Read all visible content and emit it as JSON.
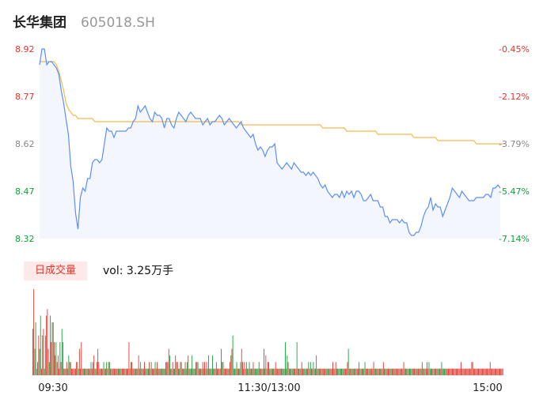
{
  "header": {
    "name": "长华集团",
    "code": "605018.SH"
  },
  "volume_panel": {
    "badge": "日成交量",
    "vol_label": "vol: 3.25万手"
  },
  "colors": {
    "price_line": "#5b8ff9",
    "avg_line": "#f5b94a",
    "up": "#e6342b",
    "down": "#13a038",
    "neutral": "#888888",
    "area_fill": "#f3f6fc"
  },
  "chart_data": [
    {
      "type": "line",
      "title": "",
      "x_ticks": [
        "09:30",
        "11:30/13:00",
        "15:00"
      ],
      "y_left_ticks": [
        "8.92",
        "8.77",
        "8.62",
        "8.47",
        "8.32"
      ],
      "y_right_ticks": [
        "-0.45%",
        "-2.12%",
        "-3.79%",
        "-5.47%",
        "-7.14%"
      ],
      "ylim": [
        8.32,
        8.92
      ],
      "series": [
        {
          "values": [
            8.87,
            8.92,
            8.92,
            8.87,
            8.88,
            8.88,
            8.87,
            8.86,
            8.84,
            8.79,
            8.75,
            8.7,
            8.65,
            8.55,
            8.5,
            8.4,
            8.35,
            8.45,
            8.48,
            8.47,
            8.51,
            8.51,
            8.56,
            8.57,
            8.57,
            8.56,
            8.57,
            8.62,
            8.67,
            8.66,
            8.66,
            8.64,
            8.66,
            8.66,
            8.66,
            8.66,
            8.66,
            8.67,
            8.67,
            8.69,
            8.7,
            8.74,
            8.72,
            8.73,
            8.74,
            8.72,
            8.7,
            8.69,
            8.72,
            8.71,
            8.71,
            8.7,
            8.67,
            8.7,
            8.7,
            8.68,
            8.67,
            8.7,
            8.72,
            8.71,
            8.7,
            8.69,
            8.71,
            8.72,
            8.71,
            8.7,
            8.7,
            8.7,
            8.68,
            8.69,
            8.7,
            8.68,
            8.69,
            8.69,
            8.7,
            8.71,
            8.7,
            8.68,
            8.69,
            8.7,
            8.69,
            8.68,
            8.67,
            8.68,
            8.69,
            8.67,
            8.66,
            8.65,
            8.64,
            8.65,
            8.62,
            8.6,
            8.61,
            8.6,
            8.58,
            8.6,
            8.61,
            8.61,
            8.62,
            8.56,
            8.55,
            8.54,
            8.55,
            8.56,
            8.55,
            8.54,
            8.56,
            8.55,
            8.54,
            8.53,
            8.53,
            8.52,
            8.53,
            8.52,
            8.53,
            8.52,
            8.51,
            8.49,
            8.48,
            8.49,
            8.47,
            8.46,
            8.45,
            8.46,
            8.46,
            8.45,
            8.47,
            8.45,
            8.47,
            8.46,
            8.47,
            8.45,
            8.47,
            8.47,
            8.46,
            8.44,
            8.44,
            8.45,
            8.46,
            8.44,
            8.44,
            8.44,
            8.42,
            8.42,
            8.39,
            8.39,
            8.37,
            8.38,
            8.38,
            8.38,
            8.37,
            8.38,
            8.37,
            8.37,
            8.34,
            8.33,
            8.33,
            8.34,
            8.34,
            8.36,
            8.39,
            8.41,
            8.42,
            8.45,
            8.41,
            8.43,
            8.42,
            8.42,
            8.39,
            8.41,
            8.43,
            8.45,
            8.48,
            8.47,
            8.46,
            8.45,
            8.47,
            8.46,
            8.45,
            8.44,
            8.44,
            8.44,
            8.45,
            8.45,
            8.45,
            8.45,
            8.46,
            8.46,
            8.45,
            8.48,
            8.48,
            8.49,
            8.48
          ]
        },
        {
          "values": [
            8.88,
            8.88,
            8.88,
            8.88,
            8.88,
            8.88,
            8.88,
            8.87,
            8.85,
            8.82,
            8.79,
            8.75,
            8.73,
            8.72,
            8.71,
            8.71,
            8.7,
            8.7,
            8.7,
            8.7,
            8.7,
            8.7,
            8.7,
            8.69,
            8.69,
            8.69,
            8.69,
            8.69,
            8.69,
            8.69,
            8.69,
            8.69,
            8.69,
            8.69,
            8.69,
            8.69,
            8.69,
            8.69,
            8.69,
            8.69,
            8.69,
            8.69,
            8.69,
            8.69,
            8.69,
            8.69,
            8.69,
            8.69,
            8.69,
            8.69,
            8.69,
            8.69,
            8.69,
            8.69,
            8.69,
            8.69,
            8.69,
            8.69,
            8.69,
            8.69,
            8.69,
            8.69,
            8.69,
            8.69,
            8.69,
            8.69,
            8.69,
            8.69,
            8.69,
            8.69,
            8.69,
            8.69,
            8.69,
            8.69,
            8.69,
            8.69,
            8.69,
            8.69,
            8.69,
            8.69,
            8.69,
            8.69,
            8.69,
            8.69,
            8.68,
            8.68,
            8.68,
            8.68,
            8.68,
            8.68,
            8.68,
            8.68,
            8.68,
            8.68,
            8.68,
            8.68,
            8.68,
            8.68,
            8.68,
            8.68,
            8.68,
            8.68,
            8.68,
            8.68,
            8.68,
            8.68,
            8.68,
            8.68,
            8.68,
            8.68,
            8.68,
            8.68,
            8.68,
            8.68,
            8.68,
            8.68,
            8.68,
            8.68,
            8.67,
            8.67,
            8.67,
            8.67,
            8.67,
            8.67,
            8.67,
            8.67,
            8.67,
            8.67,
            8.66,
            8.66,
            8.66,
            8.66,
            8.66,
            8.66,
            8.66,
            8.66,
            8.66,
            8.66,
            8.66,
            8.66,
            8.66,
            8.65,
            8.65,
            8.65,
            8.65,
            8.65,
            8.65,
            8.65,
            8.65,
            8.65,
            8.65,
            8.65,
            8.65,
            8.65,
            8.65,
            8.65,
            8.64,
            8.64,
            8.64,
            8.64,
            8.64,
            8.64,
            8.64,
            8.64,
            8.64,
            8.64,
            8.63,
            8.63,
            8.63,
            8.63,
            8.63,
            8.63,
            8.63,
            8.63,
            8.63,
            8.63,
            8.63,
            8.63,
            8.63,
            8.63,
            8.63,
            8.63,
            8.62,
            8.62,
            8.62,
            8.62,
            8.62,
            8.62,
            8.62,
            8.62,
            8.62,
            8.62,
            8.62,
            8.62,
            8.62
          ]
        }
      ]
    },
    {
      "type": "bar",
      "title": "",
      "values": [
        35,
        65,
        20,
        40,
        5,
        10,
        30,
        20,
        45,
        5,
        30,
        35,
        5,
        30,
        45,
        50,
        20,
        10,
        45,
        25,
        40,
        40,
        25,
        15,
        25,
        10,
        15,
        5,
        25,
        10,
        35,
        25,
        5,
        5,
        5,
        10,
        5,
        15,
        10,
        10,
        5,
        5,
        5,
        5,
        5,
        10,
        10,
        5,
        20,
        5,
        25,
        5,
        5,
        5,
        5,
        5,
        5,
        5,
        5,
        5,
        10,
        5,
        10,
        15,
        5,
        5,
        10,
        20,
        10,
        5,
        5,
        5,
        5,
        10,
        5,
        5,
        10,
        5,
        10,
        10,
        5,
        5,
        5,
        5,
        5,
        5,
        5,
        5,
        5,
        5,
        5,
        5,
        5,
        5,
        5,
        5,
        5,
        5,
        5,
        25,
        5,
        10,
        10,
        5,
        5,
        5,
        5,
        5,
        5,
        15,
        5,
        10,
        5,
        5,
        5,
        10,
        5,
        5,
        5,
        5,
        10,
        5,
        10,
        5,
        5,
        5,
        10,
        5,
        10,
        5,
        5,
        5,
        5,
        5,
        5,
        5,
        5,
        10,
        10,
        10,
        20,
        15,
        5,
        5,
        10,
        5,
        5,
        15,
        10,
        10,
        5,
        5,
        10,
        10,
        5,
        5,
        5,
        10,
        5,
        10,
        15,
        5,
        5,
        5,
        15,
        5,
        5,
        5,
        10,
        10,
        10,
        5,
        5,
        5,
        5,
        10,
        5,
        10,
        5,
        10,
        5,
        15,
        5,
        5,
        5,
        15,
        5,
        5,
        5,
        10,
        5,
        5,
        5,
        5,
        20,
        10,
        10,
        5,
        5,
        5,
        5,
        5,
        5,
        10,
        15,
        20,
        30,
        5,
        5,
        5,
        10,
        5,
        5,
        5,
        10,
        20,
        10,
        5,
        10,
        5,
        10,
        5,
        5,
        10,
        5,
        5,
        5,
        10,
        5,
        5,
        5,
        5,
        5,
        10,
        5,
        5,
        5,
        5,
        20,
        5,
        15,
        5,
        10,
        10,
        5,
        5,
        5,
        5,
        5,
        5,
        10,
        5,
        5,
        5,
        5,
        5,
        5,
        5,
        5,
        5,
        25,
        5,
        15,
        10,
        5,
        5,
        5,
        5,
        5,
        5,
        5,
        5,
        25,
        5,
        5,
        5,
        5,
        10,
        5,
        5,
        5,
        5,
        5,
        5,
        10,
        5,
        10,
        5,
        5,
        10,
        5,
        5,
        15,
        5,
        5,
        5,
        5,
        5,
        5,
        5,
        5,
        5,
        5,
        5,
        5,
        5,
        5,
        5,
        5,
        10,
        5,
        5,
        10,
        5,
        5,
        5,
        5,
        5,
        5,
        5,
        5,
        5,
        5,
        5,
        10,
        20,
        5,
        5,
        5,
        5,
        5,
        5,
        5,
        5,
        5,
        5,
        10,
        5,
        5,
        5,
        5,
        5,
        10,
        5,
        5,
        5,
        5,
        5,
        5,
        5,
        5,
        10,
        5,
        5,
        5,
        5,
        5,
        5,
        5,
        5,
        5,
        10,
        5,
        5,
        5,
        5,
        5,
        5,
        5,
        5,
        5,
        5,
        5,
        5,
        5,
        5,
        5,
        5,
        5,
        5,
        5,
        5,
        10,
        5,
        5,
        5,
        5,
        5,
        5,
        5,
        5,
        5,
        5,
        5,
        5,
        5,
        5,
        5,
        5,
        5,
        5,
        10,
        5,
        5,
        5,
        5,
        10,
        5,
        10,
        5,
        5,
        5,
        5,
        5,
        5,
        5,
        5,
        5,
        5,
        5,
        5,
        10,
        5,
        5,
        5,
        5,
        5,
        5,
        5,
        5,
        5,
        5,
        5,
        5,
        5,
        5,
        5,
        5,
        5,
        5,
        5,
        10,
        5,
        5,
        5,
        5,
        5,
        5,
        5,
        5,
        5,
        5,
        10,
        10,
        5,
        5,
        5,
        5,
        5,
        5,
        5,
        5,
        5,
        5,
        5,
        5,
        5,
        5,
        5,
        5,
        5,
        10,
        5,
        5,
        5,
        5,
        5,
        5,
        5,
        5,
        5,
        5,
        5,
        5,
        5
      ],
      "value_directions": [
        "up",
        "up",
        "down",
        "down",
        "neutral",
        "up",
        "up",
        "down",
        "down",
        "up",
        "down",
        "up",
        "down",
        "down",
        "up",
        "up",
        "up",
        "down",
        "down",
        "up",
        "down",
        "up",
        "up",
        "up",
        "down",
        "up",
        "up",
        "up",
        "down",
        "up",
        "down",
        "down",
        "up",
        "down",
        "up",
        "up",
        "down",
        "down",
        "up",
        "down",
        "up",
        "up",
        "up",
        "up",
        "down",
        "up",
        "down",
        "down",
        "up",
        "up",
        "up",
        "up",
        "up",
        "down",
        "up",
        "up",
        "down",
        "up",
        "up",
        "up",
        "down",
        "up",
        "up",
        "up",
        "down",
        "down",
        "up",
        "down",
        "up",
        "up",
        "down",
        "up",
        "up",
        "down",
        "up",
        "down",
        "down",
        "up",
        "up",
        "down",
        "up",
        "up",
        "up",
        "down",
        "up",
        "down",
        "up",
        "up",
        "down",
        "down",
        "down",
        "up",
        "up",
        "down",
        "up",
        "down",
        "up",
        "up",
        "up",
        "up",
        "up",
        "down",
        "up",
        "up",
        "up",
        "down",
        "down",
        "up",
        "down",
        "up",
        "up",
        "down",
        "down",
        "up",
        "up",
        "up",
        "up",
        "down",
        "down",
        "up",
        "up",
        "down",
        "down",
        "up",
        "up",
        "up",
        "down",
        "up",
        "up",
        "up",
        "down",
        "up",
        "up",
        "down",
        "down",
        "up",
        "down",
        "up",
        "up",
        "up",
        "up",
        "down",
        "down",
        "up",
        "up",
        "down",
        "down",
        "up",
        "up",
        "up",
        "down",
        "down",
        "up",
        "down",
        "up",
        "up",
        "down",
        "up",
        "down",
        "down",
        "up",
        "up",
        "down",
        "up",
        "down",
        "down",
        "up",
        "down",
        "up",
        "up",
        "down",
        "up",
        "up",
        "up",
        "down",
        "up",
        "up",
        "up",
        "down",
        "up",
        "down",
        "down",
        "up",
        "down",
        "down",
        "down",
        "up",
        "up",
        "down",
        "up",
        "up",
        "down",
        "up",
        "up",
        "down",
        "down",
        "up",
        "up",
        "up",
        "down",
        "up",
        "down",
        "up",
        "up",
        "down",
        "up",
        "down",
        "up",
        "down",
        "up",
        "down",
        "up",
        "up",
        "down",
        "down",
        "up",
        "up",
        "up",
        "up",
        "up",
        "down",
        "down",
        "up",
        "down",
        "up",
        "up",
        "down",
        "up",
        "up",
        "down",
        "up",
        "down",
        "down",
        "down",
        "up",
        "up",
        "down",
        "up",
        "up",
        "down",
        "up",
        "up",
        "up",
        "down",
        "down",
        "up",
        "up",
        "down",
        "up",
        "up",
        "up",
        "down",
        "up",
        "down",
        "up",
        "up",
        "up",
        "down",
        "down",
        "up",
        "down",
        "up",
        "down",
        "up",
        "up",
        "down",
        "down",
        "up",
        "down",
        "down",
        "up",
        "up",
        "down",
        "up",
        "up",
        "down",
        "up",
        "up",
        "up",
        "down",
        "down",
        "down",
        "up",
        "up",
        "down",
        "up",
        "down",
        "up",
        "up",
        "down",
        "up",
        "down",
        "up",
        "up",
        "down",
        "down",
        "up",
        "down",
        "up",
        "up",
        "down",
        "up",
        "down",
        "up",
        "down",
        "down",
        "up",
        "up",
        "down",
        "up",
        "down",
        "up",
        "up",
        "up",
        "down",
        "up",
        "down",
        "down",
        "up",
        "down",
        "up",
        "down",
        "up",
        "up",
        "up",
        "down",
        "up",
        "up",
        "down",
        "down",
        "up",
        "down",
        "down",
        "up",
        "up",
        "up",
        "down",
        "down",
        "up",
        "up",
        "down",
        "up",
        "down",
        "up",
        "down",
        "up",
        "down",
        "down",
        "up",
        "down",
        "up",
        "up",
        "up",
        "down",
        "down",
        "up",
        "up",
        "down",
        "down",
        "up",
        "up",
        "up",
        "down",
        "down",
        "up",
        "down",
        "up",
        "up",
        "up",
        "down",
        "down",
        "up",
        "down",
        "up",
        "up",
        "down",
        "up",
        "up",
        "down",
        "up",
        "down",
        "up",
        "up",
        "up",
        "down",
        "up",
        "up",
        "down",
        "up",
        "down",
        "down",
        "up",
        "up",
        "up",
        "up",
        "down",
        "up",
        "up",
        "down",
        "up",
        "down",
        "up",
        "up",
        "down",
        "down",
        "up",
        "up",
        "up",
        "down",
        "up",
        "down",
        "up",
        "up",
        "down",
        "up",
        "up",
        "up",
        "down",
        "down",
        "up",
        "up",
        "down",
        "up",
        "down",
        "up",
        "down",
        "up",
        "up",
        "up",
        "up",
        "up"
      ]
    }
  ]
}
